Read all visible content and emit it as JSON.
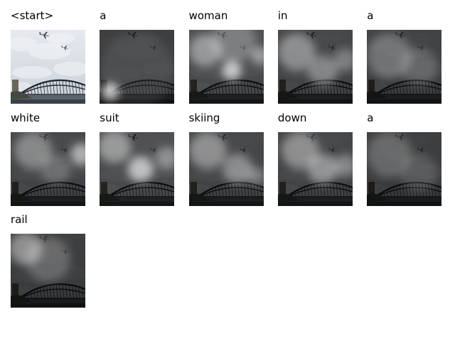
{
  "title": "",
  "cells": [
    {
      "word": "<start>",
      "light": 0,
      "spots": []
    },
    {
      "word": "a",
      "light": 0.15,
      "spots": [
        [
          0.14,
          0.84,
          0.12,
          0.95
        ],
        [
          0.5,
          0.55,
          0.5,
          0.12
        ]
      ]
    },
    {
      "word": "woman",
      "light": 0.35,
      "spots": [
        [
          0.57,
          0.55,
          0.13,
          0.9
        ],
        [
          0.22,
          0.28,
          0.22,
          0.55
        ],
        [
          0.95,
          0.35,
          0.12,
          0.6
        ],
        [
          0.6,
          0.15,
          0.3,
          0.35
        ]
      ]
    },
    {
      "word": "in",
      "light": 0.25,
      "spots": [
        [
          0.25,
          0.3,
          0.25,
          0.5
        ],
        [
          0.6,
          0.55,
          0.2,
          0.45
        ],
        [
          0.9,
          0.4,
          0.15,
          0.4
        ]
      ]
    },
    {
      "word": "a",
      "light": 0.2,
      "spots": [
        [
          0.3,
          0.35,
          0.3,
          0.35
        ],
        [
          0.7,
          0.5,
          0.25,
          0.25
        ]
      ]
    },
    {
      "word": "white",
      "light": 0.25,
      "spots": [
        [
          0.95,
          0.3,
          0.15,
          0.75
        ],
        [
          0.3,
          0.25,
          0.25,
          0.45
        ],
        [
          0.6,
          0.5,
          0.2,
          0.3
        ]
      ]
    },
    {
      "word": "suit",
      "light": 0.35,
      "spots": [
        [
          0.55,
          0.5,
          0.17,
          0.85
        ],
        [
          0.2,
          0.2,
          0.22,
          0.55
        ],
        [
          0.9,
          0.35,
          0.15,
          0.5
        ]
      ]
    },
    {
      "word": "skiing",
      "light": 0.25,
      "spots": [
        [
          0.25,
          0.25,
          0.25,
          0.5
        ],
        [
          0.65,
          0.5,
          0.2,
          0.5
        ],
        [
          0.9,
          0.6,
          0.12,
          0.4
        ]
      ]
    },
    {
      "word": "down",
      "light": 0.25,
      "spots": [
        [
          0.3,
          0.25,
          0.25,
          0.5
        ],
        [
          0.6,
          0.5,
          0.2,
          0.55
        ],
        [
          0.9,
          0.45,
          0.15,
          0.45
        ]
      ]
    },
    {
      "word": "a",
      "light": 0.15,
      "spots": [
        [
          0.3,
          0.3,
          0.3,
          0.3
        ],
        [
          0.7,
          0.55,
          0.25,
          0.2
        ]
      ]
    },
    {
      "word": "rail",
      "light": 0.15,
      "spots": [
        [
          0.2,
          0.2,
          0.22,
          0.55
        ],
        [
          0.5,
          0.35,
          0.3,
          0.3
        ]
      ]
    }
  ]
}
